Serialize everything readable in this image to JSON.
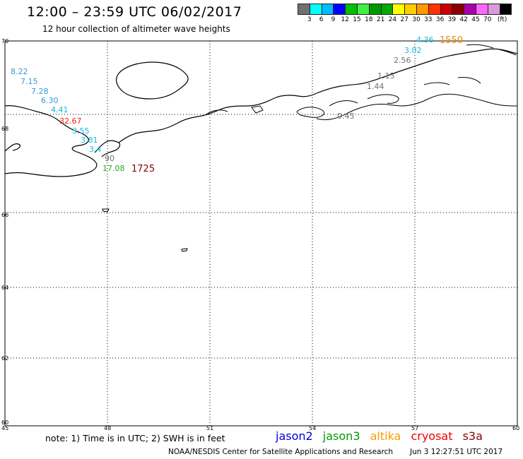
{
  "header": {
    "title": "12:00 – 23:59 UTC 06/02/2017",
    "subtitle": "12 hour collection of altimeter wave heights"
  },
  "colorbar": {
    "swatches": [
      "#707070",
      "#00ffff",
      "#00bbff",
      "#0000ff",
      "#00c000",
      "#44ee44",
      "#009900",
      "#00aa00",
      "#ffff00",
      "#ffcc00",
      "#ff9900",
      "#ff3300",
      "#cc0000",
      "#880000",
      "#aa00aa",
      "#ff66ff",
      "#dd99dd",
      "#000000"
    ],
    "labels": [
      "3",
      "6",
      "9",
      "12",
      "15",
      "18",
      "21",
      "24",
      "27",
      "30",
      "33",
      "36",
      "39",
      "42",
      "45",
      "70",
      "(ft)"
    ]
  },
  "map": {
    "lat_labels": [
      "70",
      "68",
      "66",
      "64",
      "62",
      "60"
    ],
    "lon_labels": [
      "45",
      "48",
      "51",
      "54",
      "57",
      "60"
    ],
    "wave_values": [
      {
        "text": "8.22",
        "color": "#3399dd"
      },
      {
        "text": "7.15",
        "color": "#3399dd"
      },
      {
        "text": "7.28",
        "color": "#3399dd"
      },
      {
        "text": "6.30",
        "color": "#3399dd"
      },
      {
        "text": "4.41",
        "color": "#11bbdd"
      },
      {
        "text": "32.67",
        "color": "#ee2222"
      },
      {
        "text": "3.55",
        "color": "#11bbdd"
      },
      {
        "text": "3.81",
        "color": "#11bbdd"
      },
      {
        "text": "3.4",
        "color": "#11bbdd"
      },
      {
        "text": "90",
        "color": "#707070"
      },
      {
        "text": "17.08",
        "color": "#22aa22"
      },
      {
        "text": "4.36",
        "color": "#11bbdd"
      },
      {
        "text": "3.02",
        "color": "#11bbdd"
      },
      {
        "text": "2.56",
        "color": "#707070"
      },
      {
        "text": "1.15",
        "color": "#707070"
      },
      {
        "text": "1.44",
        "color": "#707070"
      },
      {
        "text": "0.45",
        "color": "#707070"
      }
    ],
    "time_labels": [
      {
        "text": "1725",
        "color": "#880000"
      },
      {
        "text": "1550",
        "color": "#ee8800"
      }
    ]
  },
  "footer": {
    "note": "note: 1) Time is in UTC; 2) SWH is in feet",
    "legend": [
      {
        "text": "jason2",
        "color": "#0000dd"
      },
      {
        "text": "jason3",
        "color": "#009900"
      },
      {
        "text": "altika",
        "color": "#ff9900"
      },
      {
        "text": "cryosat",
        "color": "#ee0000"
      },
      {
        "text": "s3a",
        "color": "#880000"
      }
    ],
    "credit": "NOAA/NESDIS Center for Satellite Applications and Research",
    "timestamp": "Jun  3 12:27:51 UTC 2017"
  }
}
